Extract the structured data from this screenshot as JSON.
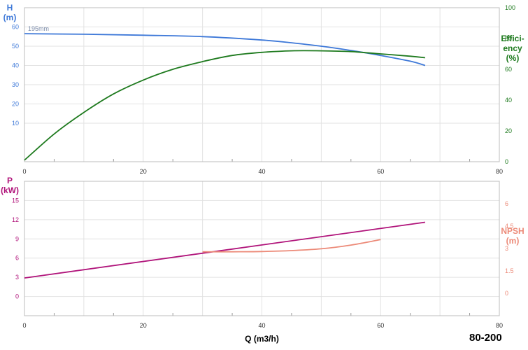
{
  "model": "80-200",
  "colors": {
    "head": "#3d78d8",
    "efficiency": "#1e7a1e",
    "power": "#b0137a",
    "npsh": "#ec8a78",
    "grid": "#e2e2e2",
    "frame": "#bcbcbc",
    "tick_text": "#333333"
  },
  "chart_data": [
    {
      "type": "line",
      "x_ticks": [
        "0",
        "20",
        "40",
        "60",
        "80"
      ],
      "xlim": [
        0,
        80
      ],
      "left_axis": {
        "label_lines": [
          "H",
          "(m)"
        ],
        "ylim": [
          -10,
          70
        ],
        "ticks": [
          "10",
          "20",
          "30",
          "40",
          "50",
          "60"
        ]
      },
      "right_axis": {
        "label_lines": [
          "Effici-",
          "ency",
          "(%)"
        ],
        "ylim": [
          0,
          100
        ],
        "ticks": [
          "0",
          "20",
          "40",
          "60",
          "80",
          "100"
        ]
      },
      "series": [
        {
          "name": "195mm",
          "axis": "left",
          "x": [
            0,
            10,
            20,
            30,
            40,
            45,
            50,
            55,
            60,
            65,
            67.5
          ],
          "y": [
            56.5,
            56.2,
            55.7,
            55.0,
            53.2,
            51.8,
            50.0,
            47.8,
            45.2,
            42.2,
            40.0
          ]
        },
        {
          "axis": "right",
          "x": [
            0,
            5,
            10,
            15,
            20,
            25,
            30,
            35,
            40,
            45,
            50,
            55,
            60,
            65,
            67.5
          ],
          "y": [
            1,
            18,
            32,
            44,
            53,
            60,
            65,
            69,
            71,
            72,
            72,
            71.5,
            70,
            68.5,
            67.5
          ]
        }
      ]
    },
    {
      "type": "line",
      "x_ticks": [
        "0",
        "20",
        "40",
        "60",
        "80"
      ],
      "xlim": [
        0,
        80
      ],
      "xlabel": "Q (m3/h)",
      "left_axis": {
        "label_lines": [
          "P",
          "(kW)"
        ],
        "ylim": [
          -3,
          18
        ],
        "ticks": [
          "0",
          "3",
          "6",
          "9",
          "12",
          "15"
        ]
      },
      "right_axis": {
        "label_lines": [
          "NPSH",
          "(m)"
        ],
        "ylim": [
          -1.5,
          7.5
        ],
        "ticks": [
          "0",
          "1.5",
          "3",
          "4.5",
          "6"
        ]
      },
      "series": [
        {
          "axis": "left",
          "x": [
            0,
            67.5
          ],
          "y": [
            2.9,
            11.6
          ]
        },
        {
          "axis": "right",
          "x": [
            30,
            35,
            40,
            45,
            50,
            55,
            60
          ],
          "y": [
            2.78,
            2.78,
            2.8,
            2.86,
            2.98,
            3.23,
            3.6
          ]
        }
      ]
    }
  ]
}
